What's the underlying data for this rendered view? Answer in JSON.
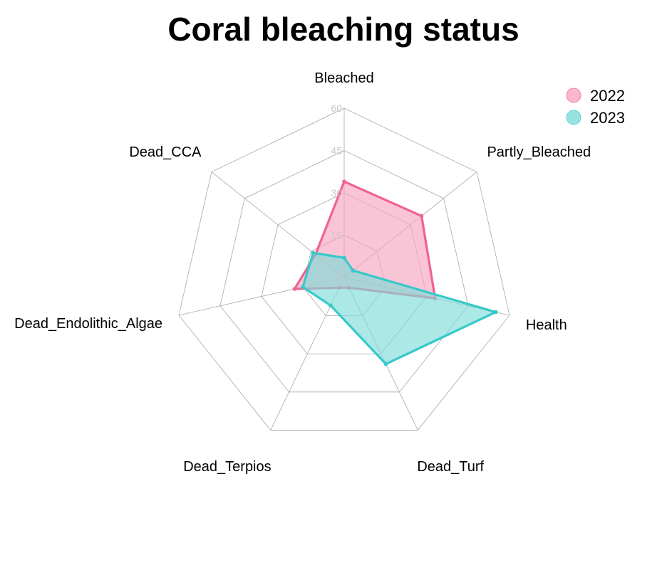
{
  "chart_data": {
    "type": "radar",
    "title": "Coral bleaching status",
    "axes": [
      "Bleached",
      "Partly_Bleached",
      "Health",
      "Dead_Turf",
      "Dead_Terpios",
      "Dead_Endolithic_Algae",
      "Dead_CCA"
    ],
    "ticks": [
      "0",
      "15",
      "30",
      "45",
      "60"
    ],
    "range": [
      0,
      60
    ],
    "grid": true,
    "legend_position": "top-right",
    "series": [
      {
        "name": "2022",
        "color": "#f06291",
        "fill": "#f8a5c2",
        "values": [
          34,
          35,
          33,
          4,
          4,
          18,
          13
        ]
      },
      {
        "name": "2023",
        "color": "#37c9c9",
        "fill": "#7fdcd9",
        "values": [
          7,
          4,
          55,
          34,
          11,
          15,
          14
        ]
      }
    ]
  }
}
